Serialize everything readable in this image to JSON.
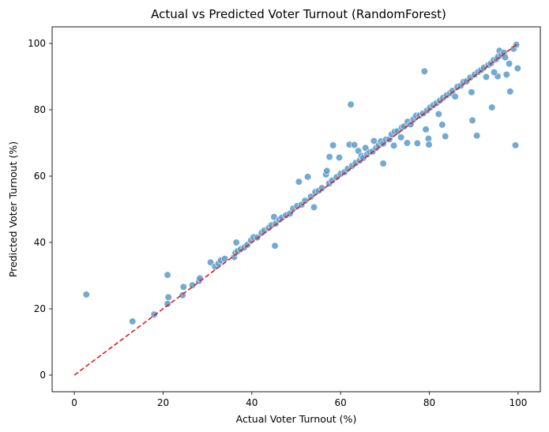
{
  "chart_data": {
    "type": "scatter",
    "title": "Actual vs Predicted Voter Turnout (RandomForest)",
    "xlabel": "Actual Voter Turnout (%)",
    "ylabel": "Predicted Voter Turnout (%)",
    "xlim": [
      -5,
      105
    ],
    "ylim": [
      -5,
      105
    ],
    "xticks": [
      0,
      20,
      40,
      60,
      80,
      100
    ],
    "yticks": [
      0,
      20,
      40,
      60,
      80,
      100
    ],
    "grid": false,
    "point_color": "#5b9bc9",
    "point_edge_color": "#ffffff",
    "reference_line": {
      "from": [
        0,
        0
      ],
      "to": [
        100,
        100
      ],
      "color": "#e31a1c",
      "style": "dashed"
    },
    "points": [
      [
        2.7,
        24.3
      ],
      [
        13.1,
        16.2
      ],
      [
        18.0,
        18.3
      ],
      [
        21.0,
        21.5
      ],
      [
        21.2,
        23.5
      ],
      [
        21.0,
        30.2
      ],
      [
        24.4,
        24.1
      ],
      [
        24.6,
        26.6
      ],
      [
        26.6,
        27.1
      ],
      [
        28.1,
        28.4
      ],
      [
        28.3,
        29.2
      ],
      [
        30.7,
        34.0
      ],
      [
        31.7,
        32.7
      ],
      [
        32.5,
        33.7
      ],
      [
        33.0,
        34.6
      ],
      [
        33.9,
        35.1
      ],
      [
        36.0,
        35.6
      ],
      [
        36.3,
        36.9
      ],
      [
        36.8,
        37.4
      ],
      [
        36.5,
        40.0
      ],
      [
        37.5,
        38.0
      ],
      [
        38.3,
        38.5
      ],
      [
        39.0,
        39.3
      ],
      [
        39.8,
        40.6
      ],
      [
        40.4,
        41.6
      ],
      [
        41.2,
        41.5
      ],
      [
        42.2,
        42.9
      ],
      [
        42.8,
        43.6
      ],
      [
        43.8,
        44.4
      ],
      [
        44.4,
        45.2
      ],
      [
        45.2,
        39.0
      ],
      [
        45.0,
        47.7
      ],
      [
        45.4,
        45.7
      ],
      [
        46.2,
        46.9
      ],
      [
        46.8,
        47.5
      ],
      [
        47.7,
        48.2
      ],
      [
        48.6,
        48.7
      ],
      [
        49.3,
        50.2
      ],
      [
        50.2,
        51.0
      ],
      [
        50.6,
        58.3
      ],
      [
        51.2,
        51.4
      ],
      [
        52.0,
        52.6
      ],
      [
        52.6,
        59.8
      ],
      [
        53.3,
        53.8
      ],
      [
        54.0,
        50.6
      ],
      [
        54.3,
        55.2
      ],
      [
        55.1,
        55.6
      ],
      [
        55.8,
        56.4
      ],
      [
        56.7,
        60.5
      ],
      [
        56.9,
        61.6
      ],
      [
        57.4,
        57.8
      ],
      [
        57.5,
        65.8
      ],
      [
        58.1,
        58.7
      ],
      [
        58.3,
        69.3
      ],
      [
        59.1,
        59.7
      ],
      [
        59.7,
        65.6
      ],
      [
        60.0,
        60.7
      ],
      [
        60.9,
        61.2
      ],
      [
        61.6,
        62.2
      ],
      [
        62.0,
        69.5
      ],
      [
        62.3,
        81.6
      ],
      [
        62.6,
        63.1
      ],
      [
        63.1,
        69.4
      ],
      [
        63.4,
        64.0
      ],
      [
        64.0,
        67.6
      ],
      [
        64.3,
        64.7
      ],
      [
        64.7,
        66.1
      ],
      [
        65.1,
        65.5
      ],
      [
        65.6,
        68.5
      ],
      [
        66.0,
        66.6
      ],
      [
        66.6,
        67.3
      ],
      [
        67.2,
        67.4
      ],
      [
        67.5,
        70.6
      ],
      [
        68.0,
        68.5
      ],
      [
        68.6,
        69.3
      ],
      [
        69.1,
        70.5
      ],
      [
        69.6,
        69.8
      ],
      [
        69.6,
        63.8
      ],
      [
        70.2,
        71.0
      ],
      [
        71.0,
        71.1
      ],
      [
        71.5,
        72.6
      ],
      [
        72.0,
        69.2
      ],
      [
        72.2,
        73.4
      ],
      [
        72.8,
        73.5
      ],
      [
        73.6,
        71.7
      ],
      [
        73.8,
        74.6
      ],
      [
        74.3,
        75.0
      ],
      [
        75.0,
        70.0
      ],
      [
        75.1,
        76.4
      ],
      [
        75.8,
        75.6
      ],
      [
        76.4,
        77.1
      ],
      [
        77.0,
        78.2
      ],
      [
        77.3,
        69.9
      ],
      [
        77.8,
        78.3
      ],
      [
        78.6,
        78.9
      ],
      [
        78.9,
        91.6
      ],
      [
        79.2,
        74.1
      ],
      [
        79.5,
        79.8
      ],
      [
        79.8,
        71.3
      ],
      [
        79.9,
        69.5
      ],
      [
        80.2,
        80.7
      ],
      [
        80.9,
        81.4
      ],
      [
        81.6,
        82.0
      ],
      [
        82.1,
        78.7
      ],
      [
        82.4,
        82.8
      ],
      [
        82.9,
        75.5
      ],
      [
        83.1,
        83.6
      ],
      [
        83.6,
        72.0
      ],
      [
        83.9,
        84.4
      ],
      [
        84.7,
        85.0
      ],
      [
        85.2,
        85.7
      ],
      [
        85.8,
        84.0
      ],
      [
        86.3,
        86.9
      ],
      [
        87.1,
        87.3
      ],
      [
        87.7,
        88.4
      ],
      [
        88.4,
        88.6
      ],
      [
        89.2,
        89.7
      ],
      [
        89.5,
        85.3
      ],
      [
        89.7,
        76.8
      ],
      [
        90.2,
        90.6
      ],
      [
        90.7,
        72.2
      ],
      [
        91.0,
        91.4
      ],
      [
        91.7,
        92.0
      ],
      [
        92.3,
        92.7
      ],
      [
        92.8,
        89.9
      ],
      [
        93.3,
        93.5
      ],
      [
        93.9,
        94.0
      ],
      [
        94.1,
        80.7
      ],
      [
        94.5,
        95.0
      ],
      [
        95.1,
        95.3
      ],
      [
        95.5,
        96.0
      ],
      [
        95.8,
        97.8
      ],
      [
        96.2,
        96.4
      ],
      [
        96.8,
        97.2
      ],
      [
        97.4,
        90.6
      ],
      [
        98.0,
        93.9
      ],
      [
        98.2,
        85.5
      ],
      [
        99.0,
        98.4
      ],
      [
        99.4,
        69.3
      ],
      [
        99.6,
        99.6
      ],
      [
        99.9,
        92.5
      ],
      [
        95.4,
        90.1
      ],
      [
        94.6,
        91.3
      ],
      [
        97.1,
        95.8
      ]
    ]
  }
}
